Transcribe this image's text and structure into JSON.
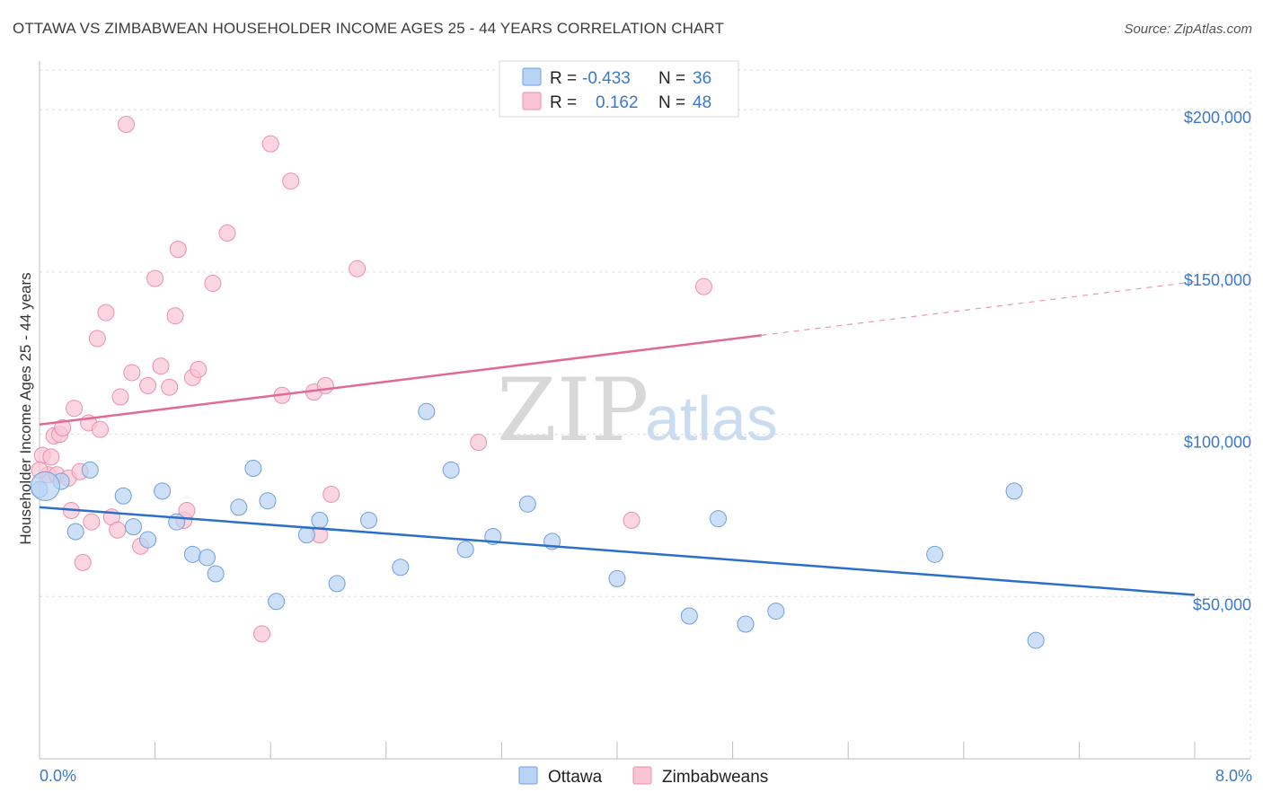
{
  "title": "OTTAWA VS ZIMBABWEAN HOUSEHOLDER INCOME AGES 25 - 44 YEARS CORRELATION CHART",
  "source": "Source: ZipAtlas.com",
  "watermark": {
    "zip": "ZIP",
    "atlas": "atlas"
  },
  "colors": {
    "ottawa_fill": "#b8d3f3",
    "ottawa_stroke": "#6f9fdc",
    "ottawa_line": "#2c6fcb",
    "zimb_fill": "#f9c4d4",
    "zimb_stroke": "#ec8eaa",
    "zimb_line": "#e06a94",
    "tick_text": "#3b78c9",
    "grid": "#dcdcdc"
  },
  "legend": {
    "rows": [
      {
        "r_label": "R =",
        "r_value": "-0.433",
        "n_label": "N =",
        "n_value": "36"
      },
      {
        "r_label": "R =",
        "r_value": "0.162",
        "n_label": "N =",
        "n_value": "48"
      }
    ]
  },
  "bottom_legend": [
    "Ottawa",
    "Zimbabweans"
  ],
  "chart_data": {
    "type": "scatter",
    "xlabel": "",
    "ylabel": "Householder Income Ages 25 - 44 years",
    "xlim": [
      0.0,
      8.0
    ],
    "ylim": [
      0,
      215000
    ],
    "x_tick_labels": [
      "0.0%",
      "8.0%"
    ],
    "y_ticks": [
      50000,
      100000,
      150000,
      200000
    ],
    "y_tick_labels": [
      "$50,000",
      "$100,000",
      "$150,000",
      "$200,000"
    ],
    "grid": true,
    "series": [
      {
        "name": "Ottawa",
        "r": -0.433,
        "n": 36,
        "trend": {
          "x0": 0.0,
          "y0": 77500,
          "x1": 8.0,
          "y1": 50500
        },
        "points": [
          [
            0.0,
            83000
          ],
          [
            0.15,
            85500
          ],
          [
            0.25,
            70000
          ],
          [
            0.35,
            89000
          ],
          [
            0.58,
            81000
          ],
          [
            0.65,
            71500
          ],
          [
            0.75,
            67500
          ],
          [
            0.85,
            82500
          ],
          [
            0.95,
            73000
          ],
          [
            1.06,
            63000
          ],
          [
            1.16,
            62000
          ],
          [
            1.22,
            57000
          ],
          [
            1.38,
            77500
          ],
          [
            1.48,
            89500
          ],
          [
            1.58,
            79500
          ],
          [
            1.64,
            48500
          ],
          [
            1.85,
            69000
          ],
          [
            1.94,
            73500
          ],
          [
            2.06,
            54000
          ],
          [
            2.28,
            73500
          ],
          [
            2.5,
            59000
          ],
          [
            2.68,
            107000
          ],
          [
            2.85,
            89000
          ],
          [
            2.95,
            64500
          ],
          [
            3.14,
            68500
          ],
          [
            3.38,
            78500
          ],
          [
            3.55,
            67000
          ],
          [
            4.0,
            55500
          ],
          [
            4.5,
            44000
          ],
          [
            4.7,
            74000
          ],
          [
            4.89,
            41500
          ],
          [
            5.1,
            45500
          ],
          [
            6.2,
            63000
          ],
          [
            6.75,
            82500
          ],
          [
            6.9,
            36500
          ],
          [
            0.04,
            84000
          ]
        ]
      },
      {
        "name": "Zimbabweans",
        "r": 0.162,
        "n": 48,
        "trend": {
          "x0": 0.0,
          "y0": 103000,
          "x1": 5.0,
          "y1": 130500,
          "dash_to_x": 8.0,
          "dash_to_y": 147000
        },
        "points": [
          [
            0.02,
            93500
          ],
          [
            0.06,
            87500
          ],
          [
            0.08,
            93000
          ],
          [
            0.1,
            99500
          ],
          [
            0.12,
            87500
          ],
          [
            0.14,
            100000
          ],
          [
            0.16,
            102000
          ],
          [
            0.2,
            86500
          ],
          [
            0.22,
            76500
          ],
          [
            0.24,
            108000
          ],
          [
            0.28,
            88500
          ],
          [
            0.3,
            60500
          ],
          [
            0.34,
            103500
          ],
          [
            0.36,
            73000
          ],
          [
            0.4,
            129500
          ],
          [
            0.42,
            101500
          ],
          [
            0.46,
            137500
          ],
          [
            0.5,
            74500
          ],
          [
            0.54,
            70500
          ],
          [
            0.56,
            111500
          ],
          [
            0.6,
            195500
          ],
          [
            0.64,
            119000
          ],
          [
            0.7,
            65500
          ],
          [
            0.75,
            115000
          ],
          [
            0.8,
            148000
          ],
          [
            0.84,
            121000
          ],
          [
            0.9,
            114500
          ],
          [
            0.94,
            136500
          ],
          [
            0.96,
            157000
          ],
          [
            1.0,
            73500
          ],
          [
            1.02,
            76500
          ],
          [
            1.06,
            117500
          ],
          [
            1.1,
            120000
          ],
          [
            1.2,
            146500
          ],
          [
            1.3,
            162000
          ],
          [
            1.54,
            38500
          ],
          [
            1.6,
            189500
          ],
          [
            1.68,
            112000
          ],
          [
            1.74,
            178000
          ],
          [
            1.9,
            113000
          ],
          [
            1.94,
            69000
          ],
          [
            1.98,
            115000
          ],
          [
            2.02,
            81500
          ],
          [
            2.2,
            151000
          ],
          [
            3.04,
            97500
          ],
          [
            4.1,
            73500
          ],
          [
            4.6,
            145500
          ],
          [
            0.0,
            89000
          ]
        ]
      }
    ]
  }
}
